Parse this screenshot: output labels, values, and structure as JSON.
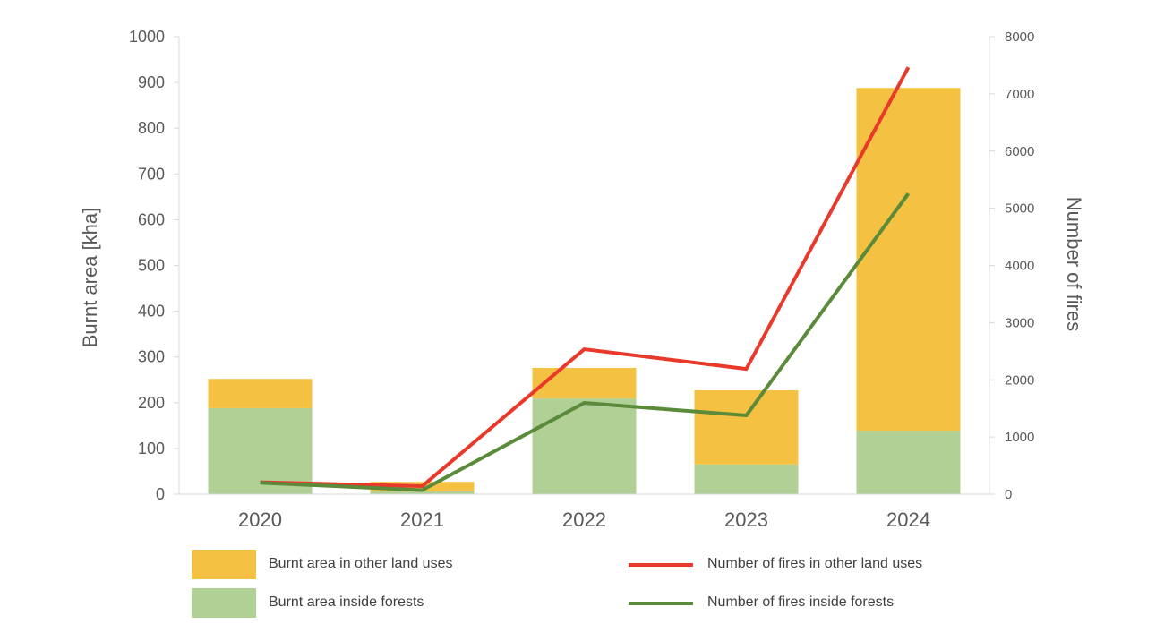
{
  "chart_data": {
    "type": "bar",
    "categories": [
      "2020",
      "2021",
      "2022",
      "2023",
      "2024"
    ],
    "ylabel": "Burnt area [kha]",
    "y2label": "Number of fires",
    "ylim": [
      0,
      1000
    ],
    "y2lim": [
      0,
      8000
    ],
    "yticks": [
      "0",
      "100",
      "200",
      "300",
      "400",
      "500",
      "600",
      "700",
      "800",
      "900",
      "1000"
    ],
    "y2ticks": [
      "0",
      "1000",
      "2000",
      "3000",
      "4000",
      "5000",
      "6000",
      "7000",
      "8000"
    ],
    "series": [
      {
        "name": "Burnt area inside forests",
        "type": "stacked-bar",
        "axis": "left",
        "color": "#b0d095",
        "values": [
          188,
          6,
          209,
          65,
          139
        ]
      },
      {
        "name": "Burnt area in other land uses",
        "type": "stacked-bar",
        "axis": "left",
        "color": "#f5c142",
        "values": [
          64,
          21,
          67,
          162,
          749
        ]
      },
      {
        "name": "Number of fires in other land uses",
        "type": "line",
        "axis": "right",
        "color": "#e8392a",
        "values": [
          210,
          140,
          2535,
          2190,
          7465
        ]
      },
      {
        "name": "Number of fires inside forests",
        "type": "line",
        "axis": "right",
        "color": "#5a8a3a",
        "values": [
          200,
          70,
          1596,
          1377,
          5258
        ]
      }
    ],
    "legend": [
      "Burnt area in other land uses",
      "Number of fires in other land uses",
      "Burnt area inside forests",
      "Number of fires inside forests"
    ],
    "grid": false,
    "legend_position": "bottom"
  }
}
